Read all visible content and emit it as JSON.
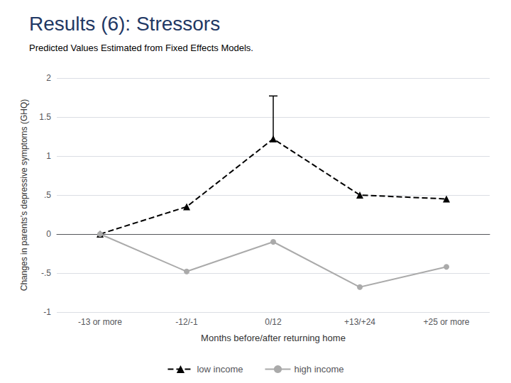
{
  "chart_data": {
    "type": "line",
    "title": "Results (6): Stressors",
    "subtitle": "Predicted Values Estimated from Fixed Effects Models.",
    "xlabel": "Months before/after returning home",
    "ylabel": "Changes in parents’s depressive symptoms (GHQ)",
    "categories": [
      "-13 or more",
      "-12/-1",
      "0/12",
      "+13/+24",
      "+25 or more"
    ],
    "series": [
      {
        "name": "low income",
        "color": "#000000",
        "marker": "triangle",
        "line_style": "dashed",
        "values": [
          0.0,
          0.35,
          1.22,
          0.5,
          0.45
        ],
        "error_up": [
          null,
          null,
          0.55,
          null,
          null
        ]
      },
      {
        "name": "high income",
        "color": "#aaaaaa",
        "marker": "circle",
        "line_style": "solid",
        "values": [
          0.0,
          -0.48,
          -0.1,
          -0.68,
          -0.42
        ]
      }
    ],
    "ylim": [
      -1.0,
      2.0
    ],
    "yticks": [
      -1,
      {
        "value": -0.5,
        "label": "-.5"
      },
      0,
      {
        "value": 0.5,
        "label": ".5"
      },
      1,
      1.5,
      2
    ],
    "grid": true,
    "legend": "bottom"
  }
}
